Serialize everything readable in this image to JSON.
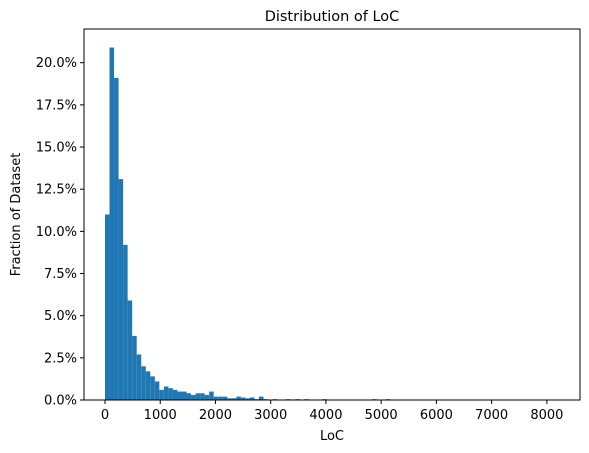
{
  "chart_data": {
    "type": "bar",
    "title": "Distribution of LoC",
    "xlabel": "LoC",
    "ylabel": "Fraction of Dataset",
    "xlim": [
      -380,
      8600
    ],
    "ylim": [
      0,
      0.22
    ],
    "bin_width": 82,
    "bin_start": 0,
    "xticks": [
      0,
      1000,
      2000,
      3000,
      4000,
      5000,
      6000,
      7000,
      8000
    ],
    "xtick_labels": [
      "0",
      "1000",
      "2000",
      "3000",
      "4000",
      "5000",
      "6000",
      "7000",
      "8000"
    ],
    "yticks": [
      0,
      0.025,
      0.05,
      0.075,
      0.1,
      0.125,
      0.15,
      0.175,
      0.2
    ],
    "ytick_labels": [
      "0.0%",
      "2.5%",
      "5.0%",
      "7.5%",
      "10.0%",
      "12.5%",
      "15.0%",
      "17.5%",
      "20.0%"
    ],
    "color": "#1f77b4",
    "grid": false,
    "values": [
      0.11,
      0.209,
      0.191,
      0.131,
      0.092,
      0.059,
      0.038,
      0.027,
      0.02,
      0.017,
      0.014,
      0.011,
      0.006,
      0.008,
      0.007,
      0.006,
      0.005,
      0.005,
      0.004,
      0.003,
      0.004,
      0.004,
      0.003,
      0.005,
      0.002,
      0.002,
      0.002,
      0.001,
      0.001,
      0.002,
      0.0015,
      0.001,
      0.0015,
      0.0005,
      0.002,
      0.0005,
      0.0003,
      0.0005,
      0.0003,
      0.0003,
      0.0005,
      0.0003,
      0.0005,
      0.0003,
      0.0005,
      0.0003,
      0.0003,
      0.0003,
      0.0005,
      0.0002,
      0.0002,
      0.0002,
      0.0002,
      0.0002,
      0.0002,
      0.0002,
      0.0002,
      0.0002,
      0.0002,
      0.0005,
      0.0002,
      0.0002,
      0.0005,
      0.0002,
      0.0002,
      0.0002,
      0.0002,
      0.0002,
      0.0002,
      0.0002,
      0.0002,
      0.0002,
      0.0002,
      0.0002,
      0.0002,
      0.0002,
      0.0002,
      0.0002,
      0.0002,
      0.0002,
      0.0002,
      0.0002,
      0.0002,
      0.0002,
      0.0002,
      0.0002,
      0.0002,
      0.0002,
      0.0002,
      0.0002,
      0.0002,
      0.0002,
      0.0002,
      0.0002,
      0.0002,
      0.0002,
      0.0002,
      0.0002,
      0.0002,
      0.0002
    ]
  }
}
